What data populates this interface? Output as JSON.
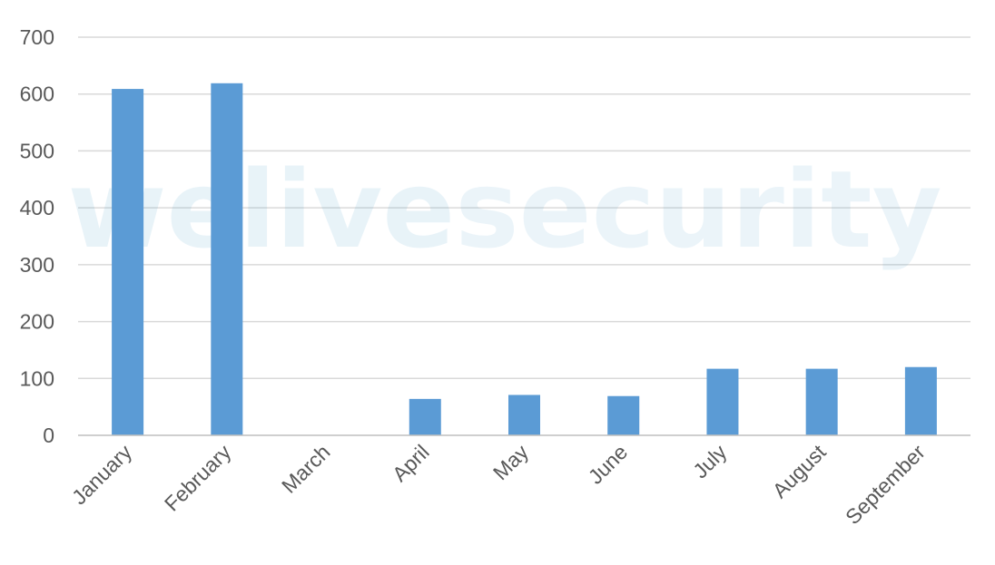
{
  "chart_data": {
    "type": "bar",
    "title": "",
    "xlabel": "",
    "ylabel": "",
    "categories": [
      "January",
      "February",
      "March",
      "April",
      "May",
      "June",
      "July",
      "August",
      "September"
    ],
    "values": [
      609,
      619,
      0,
      64,
      71,
      69,
      117,
      117,
      120
    ],
    "ylim": [
      0,
      700
    ],
    "yticks": [
      0,
      100,
      200,
      300,
      400,
      500,
      600,
      700
    ],
    "ytick_labels": [
      "0",
      "100",
      "200",
      "300",
      "400",
      "500",
      "600",
      "700"
    ],
    "grid": true,
    "legend": "none",
    "bar_color": "#5b9bd5",
    "grid_color": "#d9d9d9",
    "axis_color": "#bfbfbf"
  },
  "watermark": {
    "text_dark": "welive",
    "text_light": "security"
  }
}
